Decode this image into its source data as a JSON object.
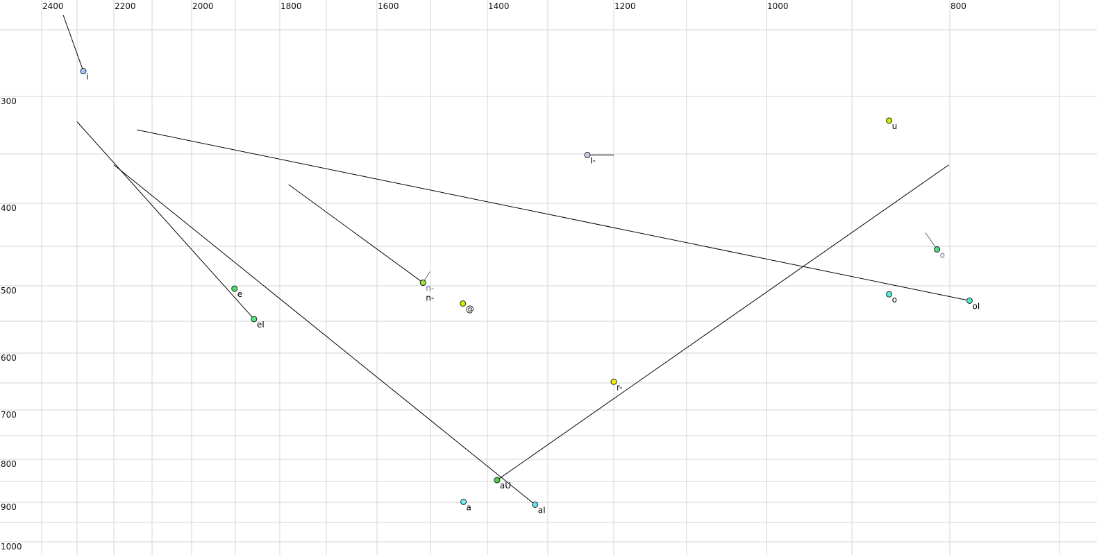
{
  "chart_data": {
    "type": "scatter",
    "title": "",
    "xlabel": "",
    "ylabel": "",
    "x_axis": {
      "reversed": true,
      "scale": "nonlinear",
      "tick_labels": [
        "2400",
        "2200",
        "2000",
        "1800",
        "1600",
        "1400",
        "1200",
        "1000",
        "800"
      ],
      "grid": [
        2400,
        2300,
        2200,
        2100,
        2000,
        1900,
        1800,
        1700,
        1600,
        1500,
        1400,
        1300,
        1200,
        1100,
        1000,
        900,
        800,
        700
      ],
      "position": "top"
    },
    "y_axis": {
      "reversed": true,
      "scale": "nonlinear",
      "tick_labels": [
        "300",
        "400",
        "500",
        "600",
        "700",
        "800",
        "900",
        "1000"
      ],
      "grid": [
        250,
        300,
        350,
        400,
        450,
        500,
        550,
        600,
        650,
        700,
        750,
        800,
        850,
        900,
        950,
        1000
      ],
      "position": "left"
    },
    "grid": true,
    "points": [
      {
        "label": "i",
        "f2": 2283,
        "f1": 281,
        "color": "#9ecbf5",
        "label_color": "#000000",
        "trail": [
          2339,
          239
        ],
        "trail_color": "#000000"
      },
      {
        "label": "I-",
        "f2": 1240,
        "f1": 351,
        "color": "#c8c8f0",
        "label_color": "#000000",
        "trail": [
          1200,
          351
        ],
        "trail_color": "#000000"
      },
      {
        "label": "n-",
        "f2": 1514,
        "f1": 496,
        "color": "#9be83a",
        "label_color": "#707090",
        "trail": [
          1501,
          482
        ],
        "trail_color": "#707070"
      },
      {
        "label": "n-",
        "f2": 1514,
        "f1": 496,
        "color": "#9be83a",
        "label_color": "#000000",
        "label_row": 1
      },
      {
        "label": "@",
        "f2": 1443,
        "f1": 525,
        "color": "#d4f000",
        "label_color": "#000000"
      },
      {
        "label": "u",
        "f2": 862,
        "f1": 321,
        "color": "#c8f000",
        "label_color": "#000000"
      },
      {
        "label": "o",
        "f2": 813,
        "f1": 454,
        "color": "#48e080",
        "label_color": "#707090",
        "trail": [
          825,
          434
        ],
        "trail_color": "#707070"
      },
      {
        "label": "o",
        "f2": 862,
        "f1": 512,
        "color": "#50f0d0",
        "label_color": "#000000"
      },
      {
        "label": "oI",
        "f2": 782,
        "f1": 521,
        "color": "#48f0d0",
        "label_color": "#000000"
      },
      {
        "label": "e",
        "f2": 1902,
        "f1": 504,
        "color": "#48e070",
        "label_color": "#000000"
      },
      {
        "label": "eI",
        "f2": 1858,
        "f1": 547,
        "color": "#50e880",
        "label_color": "#000000"
      },
      {
        "label": "r-",
        "f2": 1200,
        "f1": 648,
        "color": "#f0f000",
        "label_color": "#000000"
      },
      {
        "label": "aU",
        "f2": 1384,
        "f1": 847,
        "color": "#48d848",
        "label_color": "#000000"
      },
      {
        "label": "a",
        "f2": 1442,
        "f1": 899,
        "color": "#70eef0",
        "label_color": "#000000"
      },
      {
        "label": "aI",
        "f2": 1321,
        "f1": 906,
        "color": "#68e0f0",
        "label_color": "#000000"
      }
    ],
    "segments": [
      {
        "from": [
          2300,
          322
        ],
        "to": [
          1858,
          547
        ]
      },
      {
        "from": [
          2200,
          361
        ],
        "to": [
          1321,
          906
        ]
      },
      {
        "from": [
          1384,
          847
        ],
        "to": [
          801,
          361
        ]
      },
      {
        "from": [
          2140,
          329
        ],
        "to": [
          782,
          521
        ]
      },
      {
        "from": [
          1781,
          381
        ],
        "to": [
          1514,
          496
        ]
      }
    ]
  }
}
